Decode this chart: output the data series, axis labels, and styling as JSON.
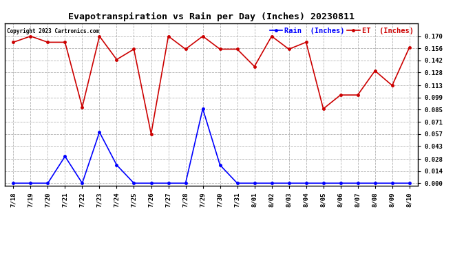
{
  "title": "Evapotranspiration vs Rain per Day (Inches) 20230811",
  "copyright": "Copyright 2023 Cartronics.com",
  "labels": [
    "7/18",
    "7/19",
    "7/20",
    "7/21",
    "7/22",
    "7/23",
    "7/24",
    "7/25",
    "7/26",
    "7/27",
    "7/28",
    "7/29",
    "7/30",
    "7/31",
    "8/01",
    "8/02",
    "8/03",
    "8/04",
    "8/05",
    "8/06",
    "8/07",
    "8/08",
    "8/09",
    "8/10"
  ],
  "rain": [
    0.0,
    0.0,
    0.0,
    0.031,
    0.0,
    0.059,
    0.021,
    0.0,
    0.0,
    0.0,
    0.0,
    0.086,
    0.021,
    0.0,
    0.0,
    0.0,
    0.0,
    0.0,
    0.0,
    0.0,
    0.0,
    0.0,
    0.0,
    0.0
  ],
  "et": [
    0.163,
    0.17,
    0.163,
    0.163,
    0.088,
    0.17,
    0.143,
    0.155,
    0.057,
    0.17,
    0.155,
    0.17,
    0.155,
    0.155,
    0.135,
    0.17,
    0.155,
    0.163,
    0.086,
    0.102,
    0.102,
    0.13,
    0.113,
    0.157
  ],
  "rain_color": "#0000ff",
  "et_color": "#cc0000",
  "ylim_min": -0.003,
  "ylim_max": 0.185,
  "yticks": [
    0.0,
    0.014,
    0.028,
    0.043,
    0.057,
    0.071,
    0.085,
    0.099,
    0.113,
    0.128,
    0.142,
    0.156,
    0.17
  ],
  "background_color": "#ffffff",
  "grid_color": "#aaaaaa",
  "legend_rain_label": "Rain  (Inches)",
  "legend_et_label": "ET  (Inches)",
  "title_fontsize": 9.5,
  "tick_fontsize": 6.5,
  "copyright_fontsize": 5.5,
  "legend_fontsize": 7.5
}
